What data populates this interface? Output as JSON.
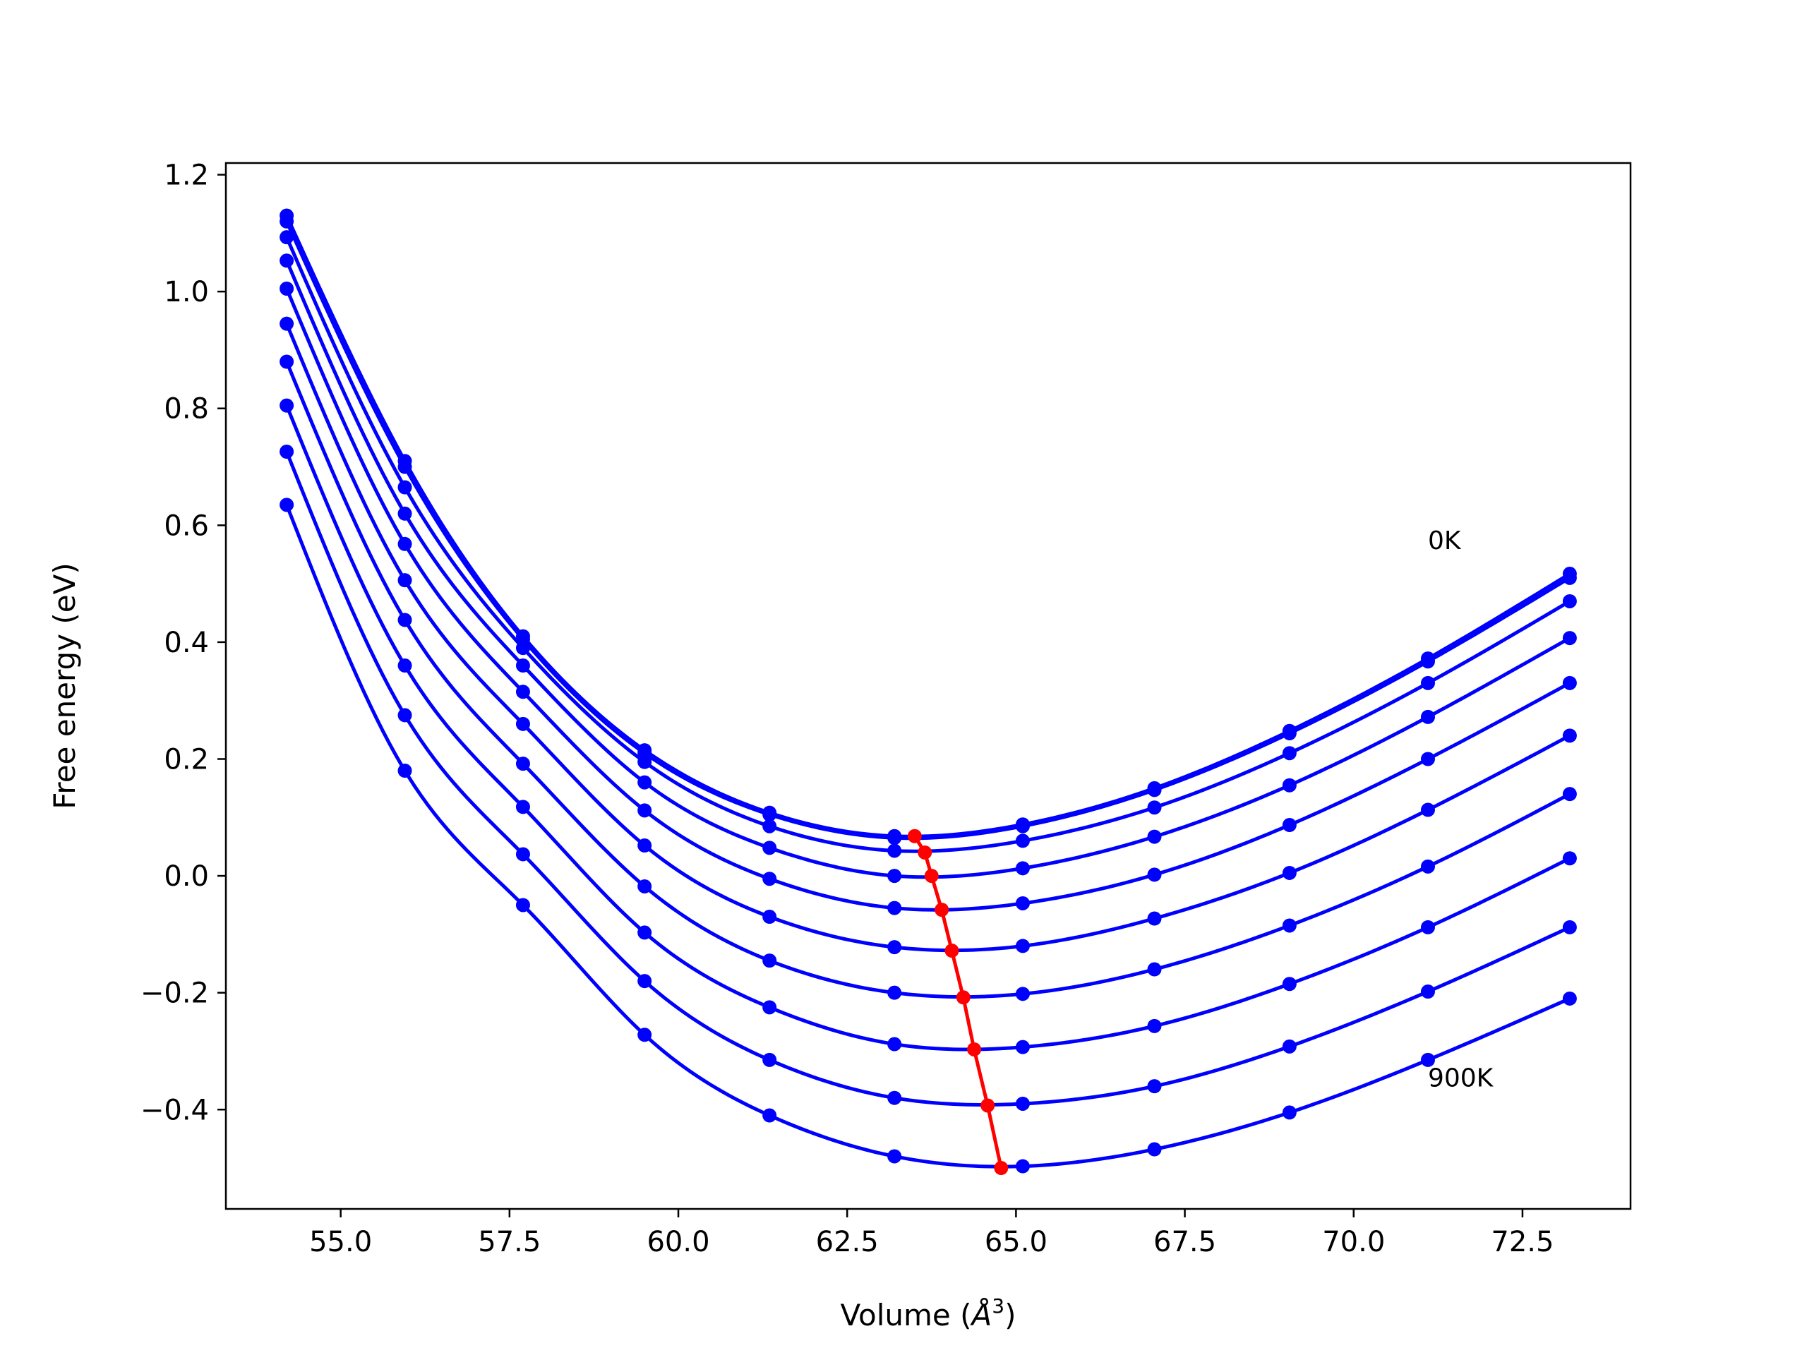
{
  "chart_data": {
    "type": "line",
    "xlabel": "Volume (Å³)",
    "xlabel_base": "Volume (",
    "xlabel_sym": "Å",
    "xlabel_sup": "3",
    "xlabel_end": ")",
    "ylabel": "Free energy (eV)",
    "xlim": [
      53.3,
      74.1
    ],
    "ylim": [
      -0.57,
      1.22
    ],
    "xticks": [
      55.0,
      57.5,
      60.0,
      62.5,
      65.0,
      67.5,
      70.0,
      72.5
    ],
    "xtick_labels": [
      "55.0",
      "57.5",
      "60.0",
      "62.5",
      "65.0",
      "67.5",
      "70.0",
      "72.5"
    ],
    "yticks": [
      -0.4,
      -0.2,
      0.0,
      0.2,
      0.4,
      0.6,
      0.8,
      1.0,
      1.2
    ],
    "ytick_labels": [
      "−0.4",
      "−0.2",
      "0.0",
      "0.2",
      "0.4",
      "0.6",
      "0.8",
      "1.0",
      "1.2"
    ],
    "annotations": [
      {
        "text": "0K",
        "x": 71.1,
        "y": 0.575
      },
      {
        "text": "900K",
        "x": 71.1,
        "y": -0.345
      }
    ],
    "curve_color": "#0000ff",
    "minimum_color": "#ff0000",
    "x": [
      54.2,
      55.95,
      57.7,
      59.5,
      61.35,
      63.2,
      65.1,
      67.05,
      69.05,
      71.1,
      73.2
    ],
    "series": [
      {
        "values": [
          1.13,
          0.71,
          0.41,
          0.215,
          0.108,
          0.068,
          0.088,
          0.15,
          0.248,
          0.372,
          0.517
        ]
      },
      {
        "values": [
          1.12,
          0.7,
          0.405,
          0.21,
          0.105,
          0.065,
          0.085,
          0.147,
          0.244,
          0.367,
          0.51
        ]
      },
      {
        "values": [
          1.093,
          0.665,
          0.39,
          0.195,
          0.085,
          0.043,
          0.06,
          0.117,
          0.21,
          0.33,
          0.47
        ]
      },
      {
        "values": [
          1.053,
          0.62,
          0.36,
          0.16,
          0.048,
          0.0,
          0.013,
          0.067,
          0.155,
          0.272,
          0.407
        ]
      },
      {
        "values": [
          1.005,
          0.568,
          0.315,
          0.112,
          -0.005,
          -0.055,
          -0.047,
          0.002,
          0.087,
          0.2,
          0.33
        ]
      },
      {
        "values": [
          0.945,
          0.506,
          0.26,
          0.052,
          -0.07,
          -0.122,
          -0.12,
          -0.073,
          0.005,
          0.113,
          0.24
        ]
      },
      {
        "values": [
          0.88,
          0.438,
          0.192,
          -0.018,
          -0.145,
          -0.2,
          -0.202,
          -0.16,
          -0.085,
          0.016,
          0.14
        ]
      },
      {
        "values": [
          0.805,
          0.36,
          0.118,
          -0.097,
          -0.225,
          -0.288,
          -0.293,
          -0.257,
          -0.185,
          -0.088,
          0.03
        ]
      },
      {
        "values": [
          0.726,
          0.275,
          0.037,
          -0.18,
          -0.315,
          -0.38,
          -0.39,
          -0.36,
          -0.292,
          -0.198,
          -0.088
        ]
      },
      {
        "values": [
          0.635,
          0.18,
          -0.05,
          -0.272,
          -0.41,
          -0.48,
          -0.497,
          -0.468,
          -0.405,
          -0.315,
          -0.21
        ]
      }
    ],
    "minima": {
      "x": [
        63.5,
        63.65,
        63.75,
        63.9,
        64.05,
        64.22,
        64.38,
        64.58,
        64.78
      ],
      "y": [
        0.068,
        0.04,
        0.0,
        -0.058,
        -0.128,
        -0.208,
        -0.297,
        -0.393,
        -0.5
      ]
    }
  }
}
